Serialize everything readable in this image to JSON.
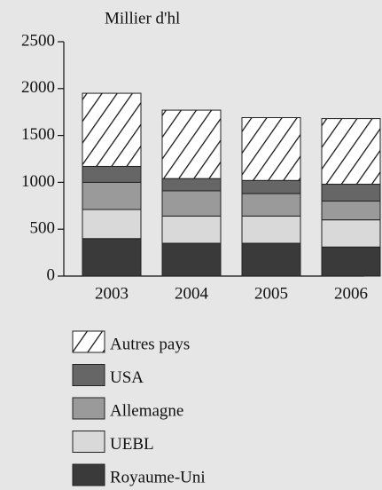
{
  "chart_data": {
    "type": "stacked-bar",
    "y_label": "Millier d'hl",
    "categories": [
      "2003",
      "2004",
      "2005",
      "2006"
    ],
    "series": [
      {
        "name": "Royaume-Uni",
        "color": "#3a3a3a",
        "values": [
          400,
          350,
          350,
          310
        ]
      },
      {
        "name": "UEBL",
        "color": "#d9d9d9",
        "values": [
          310,
          290,
          290,
          290
        ]
      },
      {
        "name": "Allemagne",
        "color": "#9a9a9a",
        "values": [
          290,
          270,
          240,
          200
        ]
      },
      {
        "name": "USA",
        "color": "#666666",
        "values": [
          170,
          130,
          140,
          180
        ]
      },
      {
        "name": "Autres pays",
        "color": "#ffffff",
        "hatch": true,
        "values": [
          780,
          730,
          670,
          700
        ]
      }
    ],
    "ylim": [
      0,
      2500
    ],
    "yticks": [
      0,
      500,
      1000,
      1500,
      2000,
      2500
    ]
  }
}
